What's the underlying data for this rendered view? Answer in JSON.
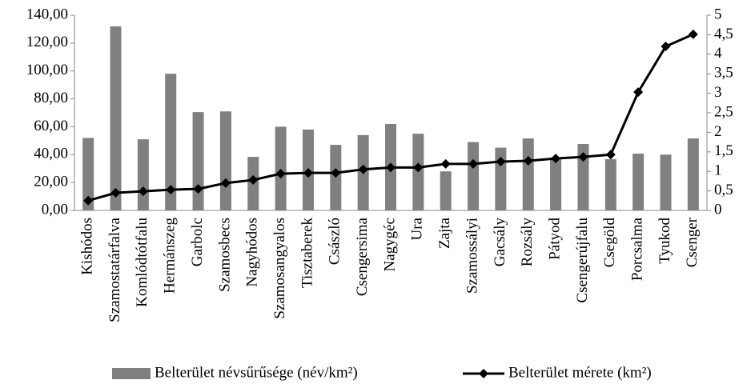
{
  "chart_data": {
    "type": "combo",
    "categories": [
      "Kishódos",
      "Szamostatárfalva",
      "Komlódtótfalu",
      "Hermánszeg",
      "Garbolc",
      "Szamosbecs",
      "Nagyhódos",
      "Szamosangyalos",
      "Tisztaberek",
      "Császló",
      "Csengersima",
      "Nagygéc",
      "Ura",
      "Zajta",
      "Szamossályi",
      "Gacsály",
      "Rozsály",
      "Pátyod",
      "Csengerújfalu",
      "Csegöld",
      "Porcsalma",
      "Tyukod",
      "Csenger"
    ],
    "series": [
      {
        "name": "Belterület névsűrűsége (név/km²)",
        "type": "bar",
        "color": "#808080",
        "values": [
          52,
          132,
          51,
          98,
          70.5,
          71,
          38.4,
          60,
          58,
          47,
          54,
          62,
          55,
          28,
          49,
          45,
          51.6,
          38,
          47.6,
          36.7,
          40.7,
          40,
          51.6
        ]
      },
      {
        "name": "Belterület mérete (km²)",
        "type": "line",
        "axis": "y2",
        "color": "#000000",
        "values": [
          0.25,
          0.45,
          0.49,
          0.53,
          0.55,
          0.7,
          0.78,
          0.94,
          0.96,
          0.96,
          1.05,
          1.1,
          1.1,
          1.19,
          1.19,
          1.25,
          1.27,
          1.33,
          1.37,
          1.43,
          3.03,
          4.2,
          4.51
        ]
      }
    ],
    "ylim": [
      0,
      140
    ],
    "yticks": [
      {
        "value": 0,
        "label": "0,00"
      },
      {
        "value": 20,
        "label": "20,00"
      },
      {
        "value": 40,
        "label": "40,00"
      },
      {
        "value": 60,
        "label": "60,00"
      },
      {
        "value": 80,
        "label": "80,00"
      },
      {
        "value": 100,
        "label": "100,00"
      },
      {
        "value": 120,
        "label": "120,00"
      },
      {
        "value": 140,
        "label": "140,00"
      }
    ],
    "y2lim": [
      0,
      5
    ],
    "y2ticks": [
      0,
      {
        "value": 0.5,
        "label": "0,5"
      },
      1,
      {
        "value": 1.5,
        "label": "1,5"
      },
      2,
      {
        "value": 2.5,
        "label": "2,5"
      },
      3,
      {
        "value": 3.5,
        "label": "3,5"
      },
      4,
      {
        "value": 4.5,
        "label": "4,5"
      },
      5
    ],
    "grid": false,
    "legend": "bottom"
  }
}
